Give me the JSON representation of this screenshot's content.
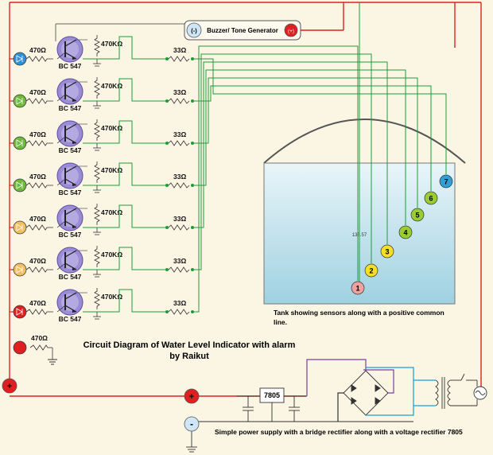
{
  "title": {
    "line1": "Circuit Diagram of Water Level Indicator with alarm",
    "line2": "by Raikut"
  },
  "buzzer": {
    "label": "Buzzer/ Tone Generator",
    "neg": "(-)",
    "pos": "(+)"
  },
  "tank": {
    "caption_line1": "Tank showing sensors along with a positive common",
    "caption_line2": "line.",
    "dim_label": "136.57"
  },
  "power": {
    "regulator": "7805",
    "caption": "Simple power supply with a bridge rectifier along with a voltage rectifier 7805",
    "plus": "+",
    "minus": "-"
  },
  "stages": [
    {
      "led_res": "470Ω",
      "bias_res": "470KΩ",
      "base_res": "33Ω",
      "transistor": "BC 547",
      "led_color": "#2f8fd8"
    },
    {
      "led_res": "470Ω",
      "bias_res": "470KΩ",
      "base_res": "33Ω",
      "transistor": "BC 547",
      "led_color": "#6cbb3c"
    },
    {
      "led_res": "470Ω",
      "bias_res": "470KΩ",
      "base_res": "33Ω",
      "transistor": "BC 547",
      "led_color": "#6cbb3c"
    },
    {
      "led_res": "470Ω",
      "bias_res": "470KΩ",
      "base_res": "33Ω",
      "transistor": "BC 547",
      "led_color": "#6cbb3c"
    },
    {
      "led_res": "470Ω",
      "bias_res": "470KΩ",
      "base_res": "33Ω",
      "transistor": "BC 547",
      "led_color": "#f0c060"
    },
    {
      "led_res": "470Ω",
      "bias_res": "470KΩ",
      "base_res": "33Ω",
      "transistor": "BC 547",
      "led_color": "#f0c060"
    },
    {
      "led_res": "470Ω",
      "bias_res": "470KΩ",
      "base_res": "33Ω",
      "transistor": "BC 547",
      "led_color": "#e02020"
    }
  ],
  "bottom_led": {
    "led_res": "470Ω",
    "led_color": "#e02020"
  },
  "sensors": [
    {
      "num": "1",
      "color": "#f1a0a0"
    },
    {
      "num": "2",
      "color": "#f4e020"
    },
    {
      "num": "3",
      "color": "#f4e020"
    },
    {
      "num": "4",
      "color": "#9acd32"
    },
    {
      "num": "5",
      "color": "#9acd32"
    },
    {
      "num": "6",
      "color": "#9acd32"
    },
    {
      "num": "7",
      "color": "#2f9fd8"
    }
  ]
}
